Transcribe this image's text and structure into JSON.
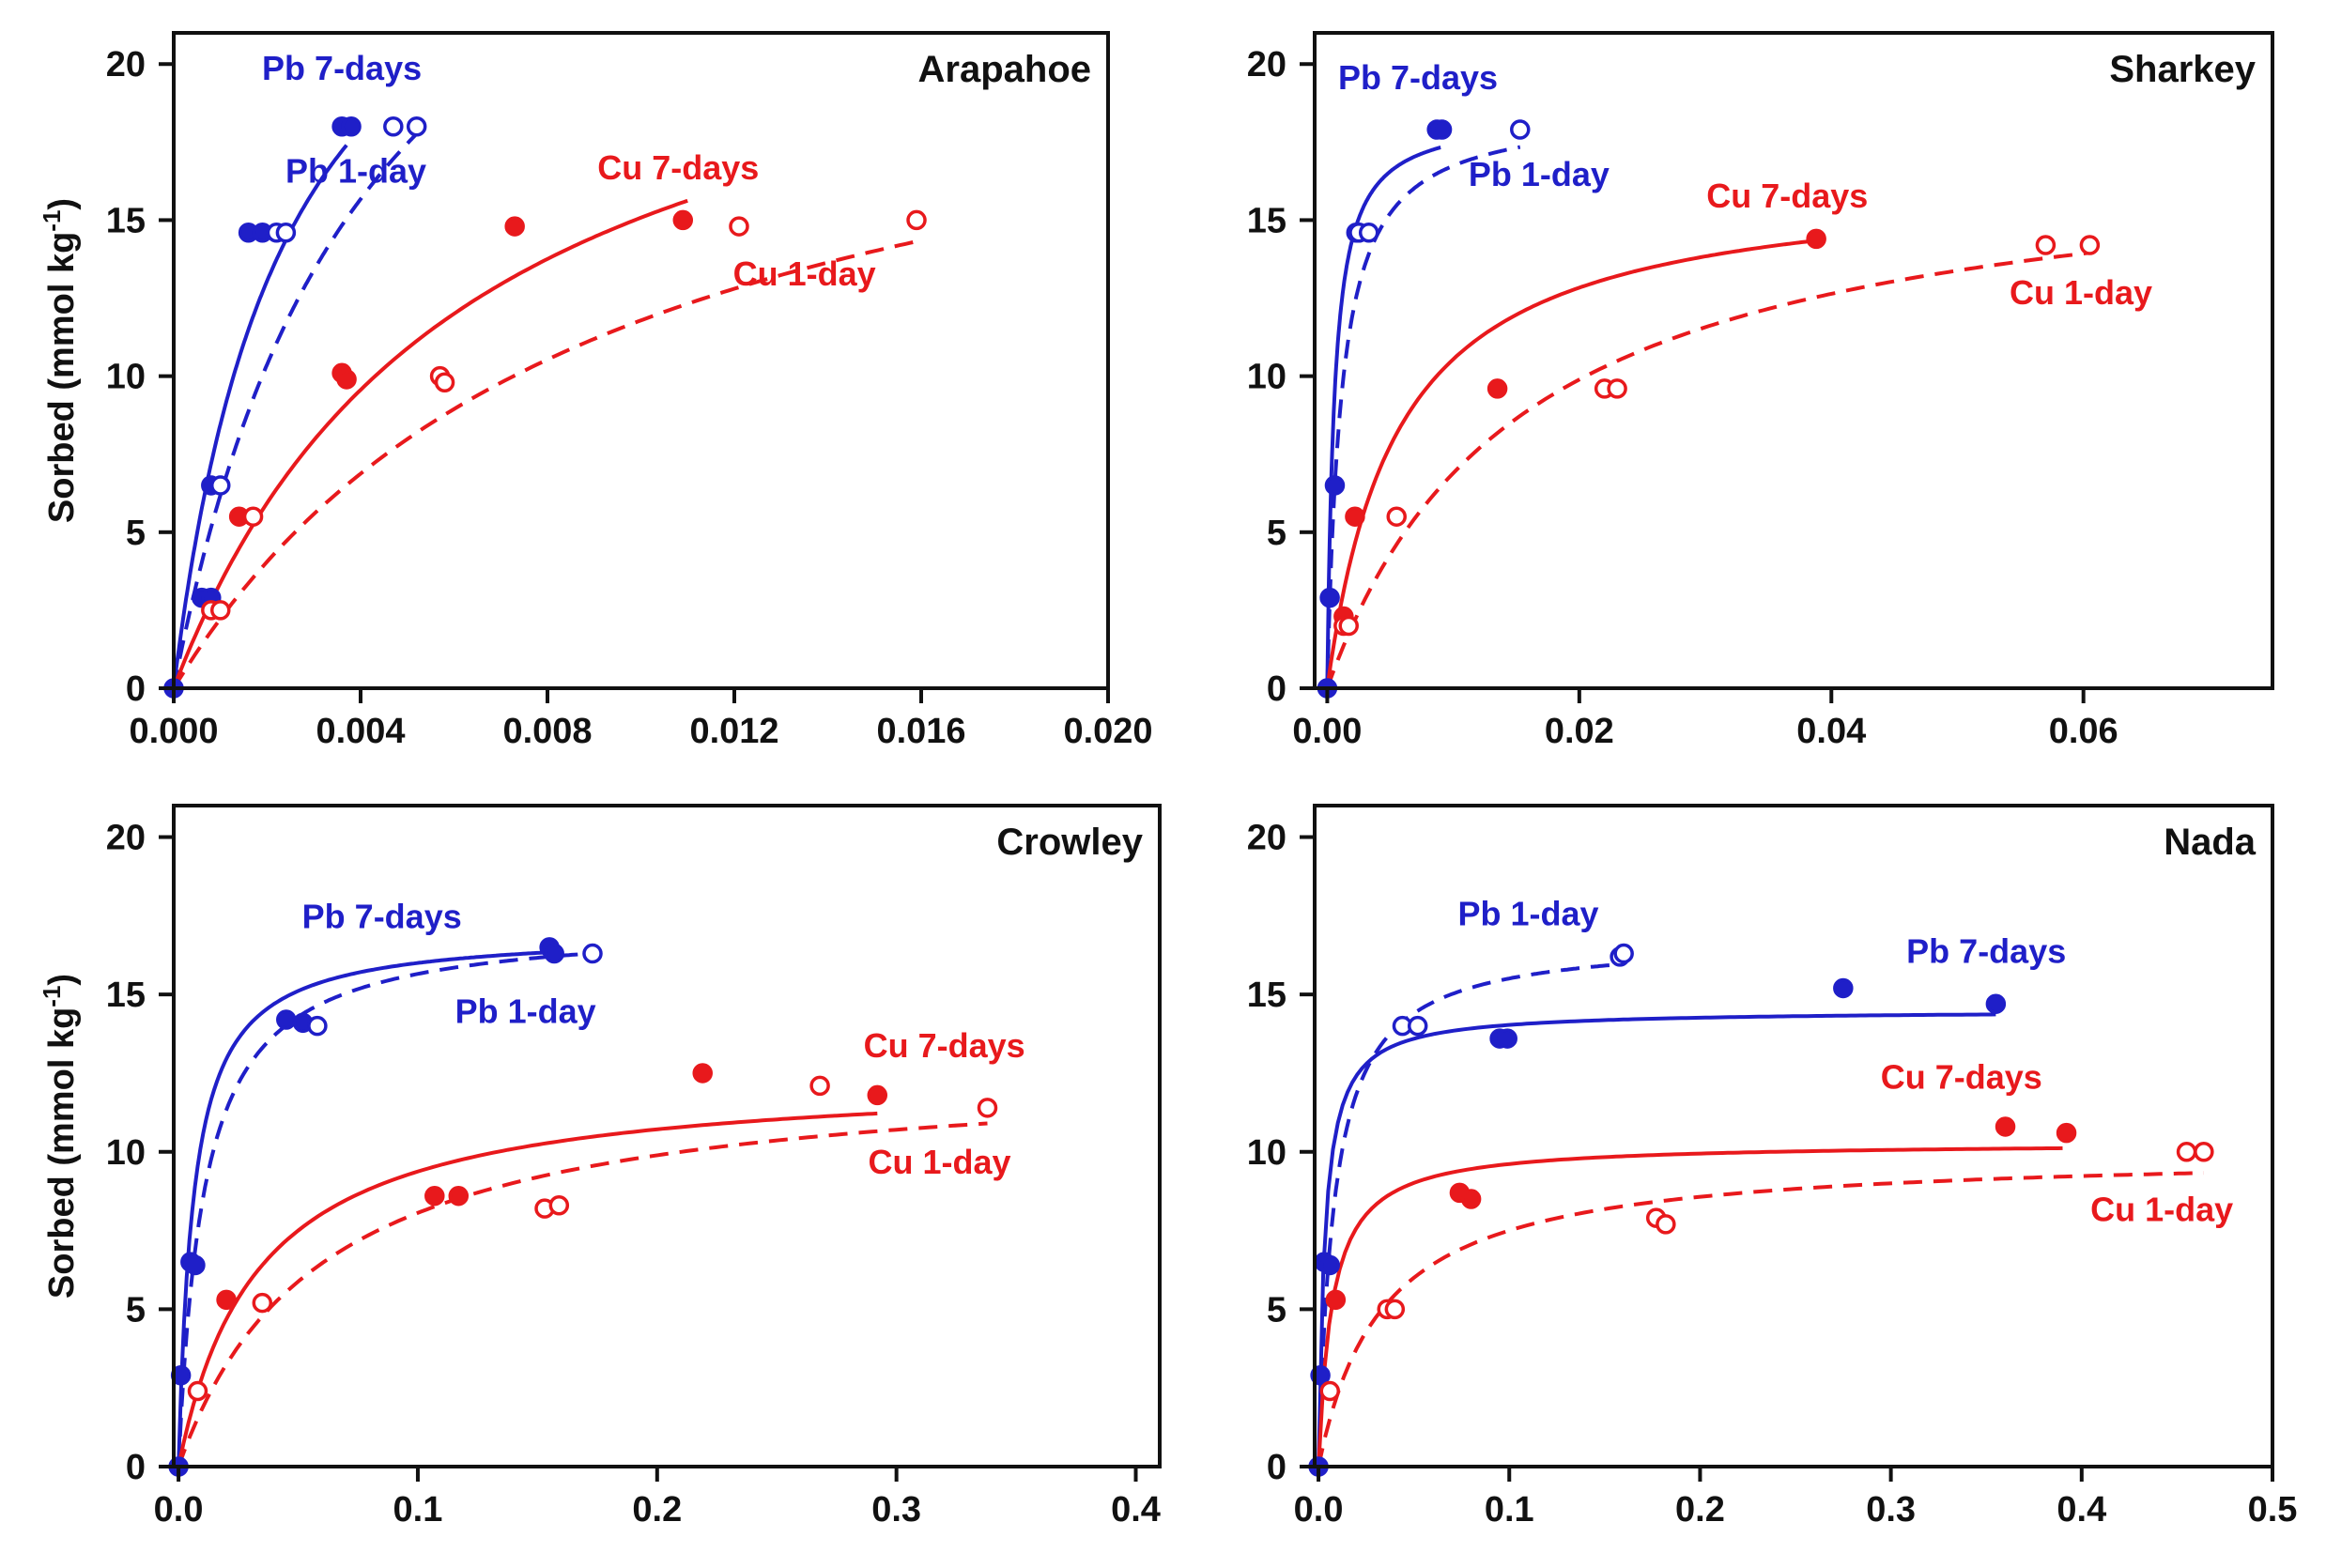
{
  "colors": {
    "pb": "#1f1fc8",
    "cu": "#e8191c",
    "axis": "#111111"
  },
  "chart_data": [
    {
      "type": "scatter",
      "title": "Arapahoe",
      "ylabel": "Sorbed (mmol kg",
      "ylabel_sup": "-1",
      "ylabel_close": ")",
      "xlim": [
        0,
        0.02
      ],
      "ylim": [
        0,
        21
      ],
      "xticks": [
        0,
        0.004,
        0.008,
        0.012,
        0.016,
        0.02
      ],
      "xtick_labels": [
        "0.000",
        "0.004",
        "0.008",
        "0.012",
        "0.016",
        "0.020"
      ],
      "yticks": [
        0,
        5,
        10,
        15,
        20
      ],
      "ytick_labels": [
        "0",
        "5",
        "10",
        "15",
        "20"
      ],
      "series": [
        {
          "name": "Pb 7-days",
          "metal": "pb",
          "filled": true,
          "dashed": false,
          "points": [
            [
              0,
              0
            ],
            [
              0.0006,
              2.9
            ],
            [
              0.0008,
              2.9
            ],
            [
              0.0008,
              6.5
            ],
            [
              0.0016,
              14.6
            ],
            [
              0.0019,
              14.6
            ],
            [
              0.0036,
              18.0
            ],
            [
              0.0038,
              18.0
            ]
          ],
          "fit": {
            "model": "langmuir",
            "smax": 28.6,
            "k": 420,
            "xmax": 0.0037
          }
        },
        {
          "name": "Pb 1-day",
          "metal": "pb",
          "filled": false,
          "dashed": true,
          "points": [
            [
              0.001,
              6.5
            ],
            [
              0.0022,
              14.6
            ],
            [
              0.0024,
              14.6
            ],
            [
              0.0047,
              18.0
            ],
            [
              0.0052,
              18.0
            ]
          ],
          "fit": {
            "model": "langmuir",
            "smax": 32,
            "k": 240,
            "xmax": 0.0052
          }
        },
        {
          "name": "Cu 7-days",
          "metal": "cu",
          "filled": true,
          "dashed": false,
          "points": [
            [
              0.0014,
              5.5
            ],
            [
              0.0036,
              10.1
            ],
            [
              0.0037,
              9.9
            ],
            [
              0.0073,
              14.8
            ],
            [
              0.0109,
              15.0
            ]
          ],
          "fit": {
            "model": "langmuir",
            "smax": 24.5,
            "k": 160,
            "xmax": 0.011
          }
        },
        {
          "name": "Cu 1-day",
          "metal": "cu",
          "filled": false,
          "dashed": true,
          "points": [
            [
              0.0008,
              2.5
            ],
            [
              0.001,
              2.5
            ],
            [
              0.0017,
              5.5
            ],
            [
              0.0057,
              10.0
            ],
            [
              0.0058,
              9.8
            ],
            [
              0.0121,
              14.8
            ],
            [
              0.0159,
              15.0
            ]
          ],
          "fit": {
            "model": "langmuir",
            "smax": 22.5,
            "k": 110,
            "xmax": 0.016
          }
        }
      ],
      "labels": [
        {
          "text": "Pb 7-days",
          "metal": "pb",
          "x": 0.0036,
          "y": 19.5
        },
        {
          "text": "Pb 1-day",
          "metal": "pb",
          "x": 0.0039,
          "y": 16.2
        },
        {
          "text": "Cu 7-days",
          "metal": "cu",
          "x": 0.0108,
          "y": 16.3
        },
        {
          "text": "Cu 1-day",
          "metal": "cu",
          "x": 0.0135,
          "y": 12.9
        }
      ]
    },
    {
      "type": "scatter",
      "title": "Sharkey",
      "ylabel": "",
      "xlim": [
        -0.001,
        0.075
      ],
      "ylim": [
        0,
        21
      ],
      "xticks": [
        0,
        0.02,
        0.04,
        0.06
      ],
      "xtick_labels": [
        "0.00",
        "0.02",
        "0.04",
        "0.06"
      ],
      "yticks": [
        0,
        5,
        10,
        15,
        20
      ],
      "ytick_labels": [
        "0",
        "5",
        "10",
        "15",
        "20"
      ],
      "series": [
        {
          "name": "Pb 7-days",
          "metal": "pb",
          "filled": true,
          "dashed": false,
          "points": [
            [
              0,
              0
            ],
            [
              0.0002,
              2.9
            ],
            [
              0.0006,
              6.5
            ],
            [
              0.0023,
              14.6
            ],
            [
              0.0025,
              14.6
            ],
            [
              0.0087,
              17.9
            ],
            [
              0.0091,
              17.9
            ]
          ],
          "fit": {
            "model": "langmuir",
            "smax": 18.4,
            "k": 1800,
            "xmax": 0.009
          }
        },
        {
          "name": "Pb 1-day",
          "metal": "pb",
          "filled": false,
          "dashed": true,
          "points": [
            [
              0.0025,
              14.6
            ],
            [
              0.0033,
              14.6
            ],
            [
              0.0153,
              17.9
            ]
          ],
          "fit": {
            "model": "langmuir",
            "smax": 18.6,
            "k": 900,
            "xmax": 0.0153
          }
        },
        {
          "name": "Cu 7-days",
          "metal": "cu",
          "filled": true,
          "dashed": false,
          "points": [
            [
              0.0013,
              2.3
            ],
            [
              0.0022,
              5.5
            ],
            [
              0.0135,
              9.6
            ],
            [
              0.0388,
              14.4
            ]
          ],
          "fit": {
            "model": "langmuir",
            "smax": 16.4,
            "k": 180,
            "xmax": 0.0388
          }
        },
        {
          "name": "Cu 1-day",
          "metal": "cu",
          "filled": false,
          "dashed": true,
          "points": [
            [
              0.0013,
              2.0
            ],
            [
              0.0017,
              2.0
            ],
            [
              0.0055,
              5.5
            ],
            [
              0.022,
              9.6
            ],
            [
              0.023,
              9.6
            ],
            [
              0.057,
              14.2
            ],
            [
              0.0605,
              14.2
            ]
          ],
          "fit": {
            "model": "langmuir",
            "smax": 17.5,
            "k": 65,
            "xmax": 0.0605
          }
        }
      ],
      "labels": [
        {
          "text": "Pb 7-days",
          "metal": "pb",
          "x": 0.0072,
          "y": 19.2
        },
        {
          "text": "Pb 1-day",
          "metal": "pb",
          "x": 0.0168,
          "y": 16.1
        },
        {
          "text": "Cu 7-days",
          "metal": "cu",
          "x": 0.0365,
          "y": 15.4
        },
        {
          "text": "Cu 1-day",
          "metal": "cu",
          "x": 0.0598,
          "y": 12.3
        }
      ]
    },
    {
      "type": "scatter",
      "title": "Crowley",
      "ylabel": "Sorbed (mmol kg",
      "ylabel_sup": "-1",
      "ylabel_close": ")",
      "xlim": [
        -0.002,
        0.41
      ],
      "ylim": [
        0,
        21
      ],
      "xticks": [
        0,
        0.1,
        0.2,
        0.3,
        0.4
      ],
      "xtick_labels": [
        "0.0",
        "0.1",
        "0.2",
        "0.3",
        "0.4"
      ],
      "yticks": [
        0,
        5,
        10,
        15,
        20
      ],
      "ytick_labels": [
        "0",
        "5",
        "10",
        "15",
        "20"
      ],
      "series": [
        {
          "name": "Pb 7-days",
          "metal": "pb",
          "filled": true,
          "dashed": false,
          "points": [
            [
              0,
              0
            ],
            [
              0.001,
              2.9
            ],
            [
              0.005,
              6.5
            ],
            [
              0.007,
              6.4
            ],
            [
              0.045,
              14.2
            ],
            [
              0.052,
              14.1
            ],
            [
              0.155,
              16.5
            ],
            [
              0.157,
              16.3
            ]
          ],
          "fit": {
            "model": "langmuir",
            "smax": 17.0,
            "k": 160,
            "xmax": 0.16
          }
        },
        {
          "name": "Pb 1-day",
          "metal": "pb",
          "filled": false,
          "dashed": true,
          "points": [
            [
              0.058,
              14.0
            ],
            [
              0.173,
              16.3
            ]
          ],
          "fit": {
            "model": "langmuir",
            "smax": 17.3,
            "k": 95,
            "xmax": 0.173
          }
        },
        {
          "name": "Cu 7-days",
          "metal": "cu",
          "filled": true,
          "dashed": false,
          "points": [
            [
              0.02,
              5.3
            ],
            [
              0.107,
              8.6
            ],
            [
              0.117,
              8.6
            ],
            [
              0.219,
              12.5
            ],
            [
              0.292,
              11.8
            ]
          ],
          "fit": {
            "model": "langmuir",
            "smax": 12.5,
            "k": 30,
            "xmax": 0.292
          }
        },
        {
          "name": "Cu 1-day",
          "metal": "cu",
          "filled": false,
          "dashed": true,
          "points": [
            [
              0.008,
              2.4
            ],
            [
              0.035,
              5.2
            ],
            [
              0.153,
              8.2
            ],
            [
              0.159,
              8.3
            ],
            [
              0.268,
              12.1
            ],
            [
              0.338,
              11.4
            ]
          ],
          "fit": {
            "model": "langmuir",
            "smax": 12.8,
            "k": 17,
            "xmax": 0.338
          }
        }
      ],
      "labels": [
        {
          "text": "Pb 7-days",
          "metal": "pb",
          "x": 0.085,
          "y": 17.1
        },
        {
          "text": "Pb 1-day",
          "metal": "pb",
          "x": 0.145,
          "y": 14.1
        },
        {
          "text": "Cu 7-days",
          "metal": "cu",
          "x": 0.32,
          "y": 13.0
        },
        {
          "text": "Cu 1-day",
          "metal": "cu",
          "x": 0.318,
          "y": 9.3
        }
      ]
    },
    {
      "type": "scatter",
      "title": "Nada",
      "ylabel": "",
      "xlim": [
        -0.002,
        0.5
      ],
      "ylim": [
        0,
        21
      ],
      "xticks": [
        0,
        0.1,
        0.2,
        0.3,
        0.4,
        0.5
      ],
      "xtick_labels": [
        "0.0",
        "0.1",
        "0.2",
        "0.3",
        "0.4",
        "0.5"
      ],
      "yticks": [
        0,
        5,
        10,
        15,
        20
      ],
      "ytick_labels": [
        "0",
        "5",
        "10",
        "15",
        "20"
      ],
      "series": [
        {
          "name": "Pb 7-days",
          "metal": "pb",
          "filled": true,
          "dashed": false,
          "points": [
            [
              0,
              0
            ],
            [
              0.001,
              2.9
            ],
            [
              0.003,
              6.5
            ],
            [
              0.006,
              6.4
            ],
            [
              0.095,
              13.6
            ],
            [
              0.099,
              13.6
            ],
            [
              0.275,
              15.2
            ],
            [
              0.355,
              14.7
            ]
          ],
          "fit": {
            "model": "langmuir",
            "smax": 14.5,
            "k": 300,
            "xmax": 0.355
          }
        },
        {
          "name": "Pb 1-day",
          "metal": "pb",
          "filled": false,
          "dashed": true,
          "points": [
            [
              0.044,
              14.0
            ],
            [
              0.052,
              14.0
            ],
            [
              0.158,
              16.2
            ],
            [
              0.16,
              16.3
            ]
          ],
          "fit": {
            "model": "langmuir",
            "smax": 16.8,
            "k": 120,
            "xmax": 0.16
          }
        },
        {
          "name": "Cu 7-days",
          "metal": "cu",
          "filled": true,
          "dashed": false,
          "points": [
            [
              0.009,
              5.3
            ],
            [
              0.074,
              8.7
            ],
            [
              0.08,
              8.5
            ],
            [
              0.36,
              10.8
            ],
            [
              0.392,
              10.6
            ]
          ],
          "fit": {
            "model": "langmuir",
            "smax": 10.3,
            "k": 140,
            "xmax": 0.39
          }
        },
        {
          "name": "Cu 1-day",
          "metal": "cu",
          "filled": false,
          "dashed": true,
          "points": [
            [
              0.006,
              2.4
            ],
            [
              0.036,
              5.0
            ],
            [
              0.04,
              5.0
            ],
            [
              0.177,
              7.9
            ],
            [
              0.182,
              7.7
            ],
            [
              0.455,
              10.0
            ],
            [
              0.464,
              10.0
            ]
          ],
          "fit": {
            "model": "langmuir",
            "smax": 10.0,
            "k": 30,
            "xmax": 0.464
          }
        }
      ],
      "labels": [
        {
          "text": "Pb 1-day",
          "metal": "pb",
          "x": 0.11,
          "y": 17.2
        },
        {
          "text": "Pb 7-days",
          "metal": "pb",
          "x": 0.35,
          "y": 16.0
        },
        {
          "text": "Cu 7-days",
          "metal": "cu",
          "x": 0.337,
          "y": 12.0
        },
        {
          "text": "Cu 1-day",
          "metal": "cu",
          "x": 0.442,
          "y": 7.8
        }
      ]
    }
  ]
}
